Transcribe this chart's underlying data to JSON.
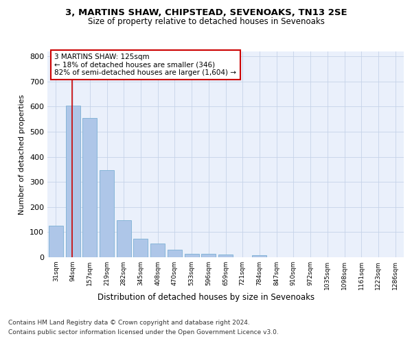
{
  "title1": "3, MARTINS SHAW, CHIPSTEAD, SEVENOAKS, TN13 2SE",
  "title2": "Size of property relative to detached houses in Sevenoaks",
  "xlabel": "Distribution of detached houses by size in Sevenoaks",
  "ylabel": "Number of detached properties",
  "categories": [
    "31sqm",
    "94sqm",
    "157sqm",
    "219sqm",
    "282sqm",
    "345sqm",
    "408sqm",
    "470sqm",
    "533sqm",
    "596sqm",
    "659sqm",
    "721sqm",
    "784sqm",
    "847sqm",
    "910sqm",
    "972sqm",
    "1035sqm",
    "1098sqm",
    "1161sqm",
    "1223sqm",
    "1286sqm"
  ],
  "values": [
    125,
    605,
    555,
    348,
    148,
    75,
    54,
    30,
    15,
    13,
    10,
    0,
    7,
    0,
    0,
    0,
    0,
    0,
    0,
    0,
    0
  ],
  "bar_color": "#aec6e8",
  "bar_edge_color": "#7bafd4",
  "vline_x_index": 1,
  "vline_color": "#cc0000",
  "annotation_text": "3 MARTINS SHAW: 125sqm\n← 18% of detached houses are smaller (346)\n82% of semi-detached houses are larger (1,604) →",
  "annotation_box_color": "#ffffff",
  "annotation_box_edge_color": "#cc0000",
  "ylim": [
    0,
    820
  ],
  "yticks": [
    0,
    100,
    200,
    300,
    400,
    500,
    600,
    700,
    800
  ],
  "footer1": "Contains HM Land Registry data © Crown copyright and database right 2024.",
  "footer2": "Contains public sector information licensed under the Open Government Licence v3.0.",
  "plot_bg_color": "#eaf0fb",
  "grid_color": "#c5d3e8"
}
